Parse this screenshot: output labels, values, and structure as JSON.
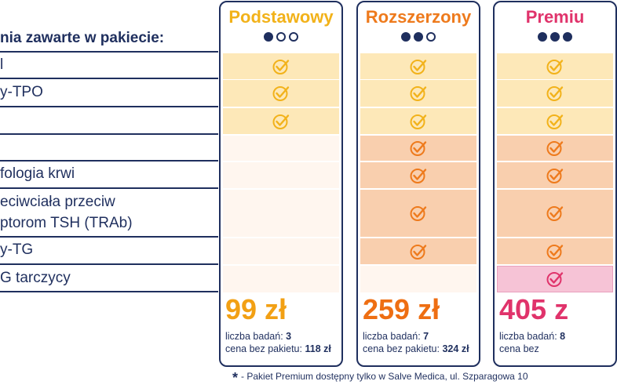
{
  "heading": "nia zawarte w pakiecie:",
  "rows": [
    {
      "label": "l",
      "checks": [
        "yellow",
        "yellow",
        "yellow"
      ]
    },
    {
      "label": "y-TPO",
      "checks": [
        "yellow",
        "yellow",
        "yellow"
      ]
    },
    {
      "label": "",
      "checks": [
        "yellow",
        "yellow",
        "yellow"
      ]
    },
    {
      "label": "",
      "checks": [
        "none",
        "peach",
        "peach"
      ]
    },
    {
      "label": "fologia krwi",
      "checks": [
        "none",
        "peach",
        "peach"
      ]
    },
    {
      "label": "eciwciała przeciw",
      "label2": "ptorom TSH (TRAb)",
      "checks": [
        "none",
        "peach",
        "peach"
      ]
    },
    {
      "label": "y-TG",
      "checks": [
        "none",
        "peach",
        "peach"
      ]
    },
    {
      "label": "G tarczycy",
      "checks": [
        "none",
        "none",
        "pink"
      ]
    }
  ],
  "packages": [
    {
      "name": "Podstawowy",
      "color": "#f2b21a",
      "dots": 1,
      "price": "99 zł",
      "price_color": "#f2a014",
      "tests_label": "liczba badań:",
      "tests": "3",
      "nopkg_label": "cena bez pakietu:",
      "nopkg": "118 zł"
    },
    {
      "name": "Rozszerzony",
      "color": "#ee7a1c",
      "dots": 2,
      "price": "259 zł",
      "price_color": "#ee6e12",
      "tests_label": "liczba badań:",
      "tests": "7",
      "nopkg_label": "cena bez pakietu:",
      "nopkg": "324 zł"
    },
    {
      "name": "Premiu",
      "color": "#e0336b",
      "dots": 3,
      "price": "405 z",
      "price_color": "#e0336b",
      "tests_label": "liczba badań:",
      "tests": "8",
      "nopkg_label": "cena bez",
      "nopkg": ""
    }
  ],
  "colors": {
    "navy": "#1f2f5e",
    "yellow_bg": "#fde8b8",
    "yellow_check": "#f2b21a",
    "peach_bg": "#f9cfae",
    "peach_check": "#ee7a1c",
    "pink_bg": "#f6c3d6",
    "pink_check": "#e0336b",
    "empty_bg": "#fff6ef"
  },
  "footnote": {
    "star": "*",
    "text": "- Pakiet Premium dostępny tylko w Salve Medica, ul. Szparagowa 10"
  }
}
